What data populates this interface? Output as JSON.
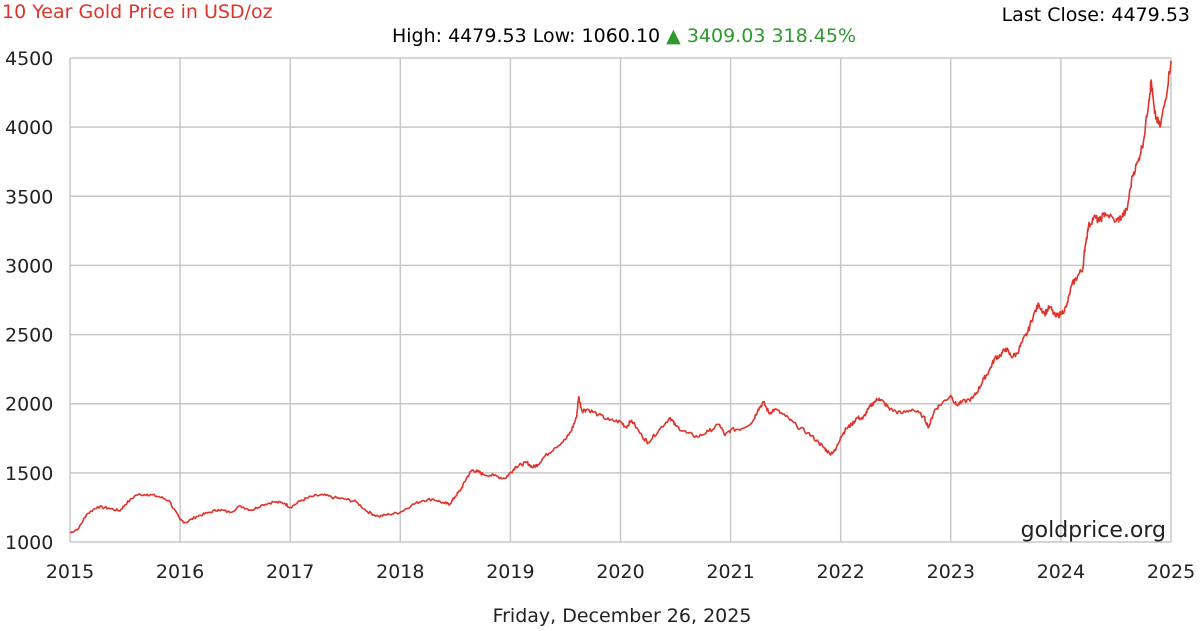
{
  "colors": {
    "title": "#e0332b",
    "line": "#e0332b",
    "up": "#2e9a2e",
    "grid": "#c8c8c8",
    "text": "#222222"
  },
  "header": {
    "title": "10 Year Gold Price in USD/oz",
    "last_close_label": "Last Close:",
    "last_close_value": "4479.53",
    "high_label": "High:",
    "high_value": "4479.53",
    "low_label": "Low:",
    "low_value": "1060.10",
    "change_arrow": "▲",
    "change_value": "3409.03",
    "change_percent": "318.45%"
  },
  "footer": {
    "date": "Friday, December 26, 2025",
    "watermark": "goldprice.org"
  },
  "chart_data": {
    "type": "line",
    "title": "10 Year Gold Price in USD/oz",
    "xlabel": "",
    "ylabel": "",
    "xlim": [
      2015,
      2025
    ],
    "ylim": [
      1000,
      4500
    ],
    "grid": true,
    "x_ticks": [
      "2015",
      "2016",
      "2017",
      "2018",
      "2019",
      "2020",
      "2021",
      "2022",
      "2023",
      "2024",
      "2025"
    ],
    "y_ticks": [
      "1000",
      "1500",
      "2000",
      "2500",
      "3000",
      "3500",
      "4000",
      "4500"
    ],
    "series": [
      {
        "values": [
          [
            2015.0,
            1065
          ],
          [
            2015.08,
            1100
          ],
          [
            2015.15,
            1200
          ],
          [
            2015.25,
            1255
          ],
          [
            2015.35,
            1245
          ],
          [
            2015.45,
            1225
          ],
          [
            2015.5,
            1270
          ],
          [
            2015.6,
            1340
          ],
          [
            2015.7,
            1345
          ],
          [
            2015.8,
            1330
          ],
          [
            2015.9,
            1300
          ],
          [
            2016.0,
            1160
          ],
          [
            2016.05,
            1140
          ],
          [
            2016.15,
            1185
          ],
          [
            2016.25,
            1210
          ],
          [
            2016.35,
            1235
          ],
          [
            2016.45,
            1215
          ],
          [
            2016.55,
            1260
          ],
          [
            2016.65,
            1230
          ],
          [
            2016.75,
            1270
          ],
          [
            2016.85,
            1290
          ],
          [
            2016.95,
            1280
          ],
          [
            2017.0,
            1250
          ],
          [
            2017.1,
            1300
          ],
          [
            2017.2,
            1330
          ],
          [
            2017.3,
            1340
          ],
          [
            2017.4,
            1320
          ],
          [
            2017.5,
            1310
          ],
          [
            2017.6,
            1290
          ],
          [
            2017.7,
            1220
          ],
          [
            2017.8,
            1185
          ],
          [
            2017.9,
            1200
          ],
          [
            2018.0,
            1215
          ],
          [
            2018.1,
            1265
          ],
          [
            2018.2,
            1300
          ],
          [
            2018.3,
            1310
          ],
          [
            2018.4,
            1280
          ],
          [
            2018.45,
            1275
          ],
          [
            2018.5,
            1330
          ],
          [
            2018.55,
            1380
          ],
          [
            2018.6,
            1460
          ],
          [
            2018.65,
            1520
          ],
          [
            2018.7,
            1510
          ],
          [
            2018.75,
            1490
          ],
          [
            2018.85,
            1480
          ],
          [
            2018.95,
            1460
          ],
          [
            2019.0,
            1500
          ],
          [
            2019.05,
            1545
          ],
          [
            2019.1,
            1560
          ],
          [
            2019.15,
            1575
          ],
          [
            2019.2,
            1540
          ],
          [
            2019.25,
            1560
          ],
          [
            2019.3,
            1610
          ],
          [
            2019.4,
            1680
          ],
          [
            2019.5,
            1740
          ],
          [
            2019.55,
            1800
          ],
          [
            2019.6,
            1900
          ],
          [
            2019.62,
            2050
          ],
          [
            2019.65,
            1950
          ],
          [
            2019.7,
            1960
          ],
          [
            2019.8,
            1920
          ],
          [
            2019.9,
            1880
          ],
          [
            2020.0,
            1870
          ],
          [
            2020.05,
            1830
          ],
          [
            2020.1,
            1880
          ],
          [
            2020.2,
            1760
          ],
          [
            2020.25,
            1720
          ],
          [
            2020.35,
            1810
          ],
          [
            2020.45,
            1900
          ],
          [
            2020.5,
            1840
          ],
          [
            2020.6,
            1790
          ],
          [
            2020.7,
            1760
          ],
          [
            2020.8,
            1800
          ],
          [
            2020.9,
            1850
          ],
          [
            2020.95,
            1770
          ],
          [
            2021.0,
            1810
          ],
          [
            2021.1,
            1820
          ],
          [
            2021.2,
            1870
          ],
          [
            2021.25,
            1960
          ],
          [
            2021.3,
            2010
          ],
          [
            2021.35,
            1930
          ],
          [
            2021.4,
            1960
          ],
          [
            2021.5,
            1910
          ],
          [
            2021.6,
            1840
          ],
          [
            2021.7,
            1790
          ],
          [
            2021.8,
            1720
          ],
          [
            2021.85,
            1680
          ],
          [
            2021.9,
            1640
          ],
          [
            2021.95,
            1660
          ],
          [
            2022.0,
            1760
          ],
          [
            2022.05,
            1820
          ],
          [
            2022.1,
            1850
          ],
          [
            2022.15,
            1900
          ],
          [
            2022.2,
            1890
          ],
          [
            2022.25,
            1960
          ],
          [
            2022.3,
            2010
          ],
          [
            2022.35,
            2040
          ],
          [
            2022.4,
            2000
          ],
          [
            2022.45,
            1960
          ],
          [
            2022.55,
            1930
          ],
          [
            2022.65,
            1960
          ],
          [
            2022.75,
            1910
          ],
          [
            2022.8,
            1830
          ],
          [
            2022.85,
            1950
          ],
          [
            2022.9,
            1990
          ],
          [
            2023.0,
            2060
          ],
          [
            2023.05,
            1990
          ],
          [
            2023.1,
            2010
          ],
          [
            2023.2,
            2040
          ],
          [
            2023.25,
            2100
          ],
          [
            2023.3,
            2180
          ],
          [
            2023.35,
            2240
          ],
          [
            2023.4,
            2330
          ],
          [
            2023.45,
            2350
          ],
          [
            2023.5,
            2400
          ],
          [
            2023.55,
            2340
          ],
          [
            2023.6,
            2360
          ],
          [
            2023.65,
            2450
          ],
          [
            2023.7,
            2520
          ],
          [
            2023.75,
            2640
          ],
          [
            2023.8,
            2720
          ],
          [
            2023.85,
            2650
          ],
          [
            2023.9,
            2700
          ],
          [
            2023.95,
            2630
          ],
          [
            2024.0,
            2650
          ],
          [
            2024.05,
            2700
          ],
          [
            2024.1,
            2860
          ],
          [
            2024.15,
            2920
          ],
          [
            2024.2,
            2980
          ],
          [
            2024.22,
            3140
          ],
          [
            2024.25,
            3280
          ],
          [
            2024.3,
            3350
          ],
          [
            2024.35,
            3320
          ],
          [
            2024.4,
            3380
          ],
          [
            2024.5,
            3320
          ],
          [
            2024.55,
            3350
          ],
          [
            2024.6,
            3400
          ],
          [
            2024.65,
            3650
          ],
          [
            2024.7,
            3750
          ],
          [
            2024.75,
            3900
          ],
          [
            2024.8,
            4200
          ],
          [
            2024.82,
            4340
          ],
          [
            2024.85,
            4100
          ],
          [
            2024.9,
            4000
          ],
          [
            2024.95,
            4200
          ],
          [
            2025.0,
            4480
          ]
        ]
      }
    ]
  }
}
